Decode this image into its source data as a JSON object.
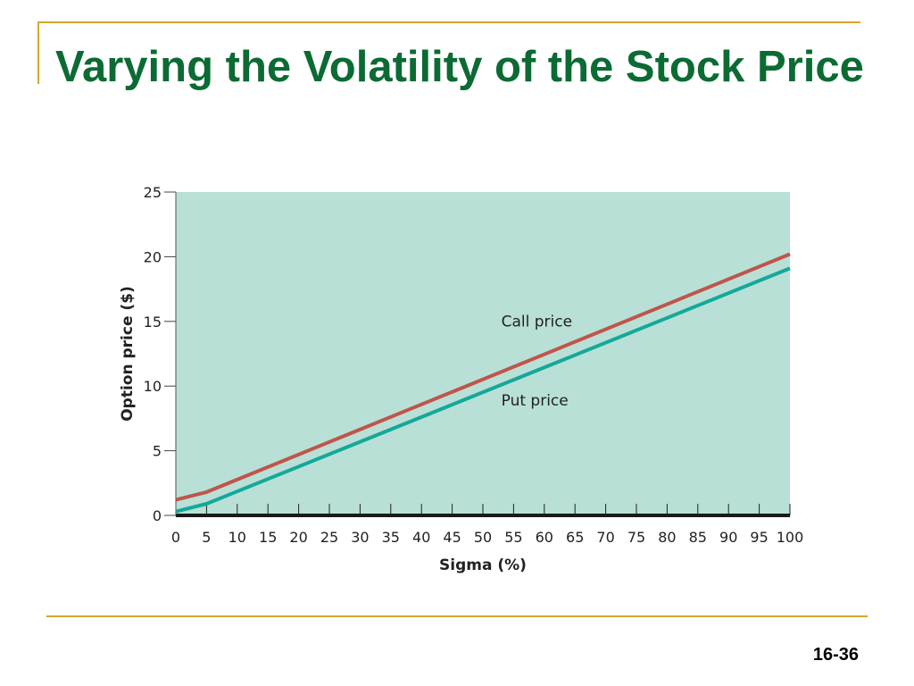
{
  "slide": {
    "title": "Varying the Volatility of the Stock Price",
    "number": "16-36"
  },
  "colors": {
    "title": "#0B6B33",
    "rule": "#D4A72C",
    "plot_background": "#B8E0D6",
    "call": "#C0554A",
    "put": "#14A89A",
    "axis": "#1A1A1A"
  },
  "chart_data": {
    "type": "line",
    "xlabel": "Sigma (%)",
    "ylabel": "Option price ($)",
    "xlim": [
      0,
      100
    ],
    "ylim": [
      0,
      25
    ],
    "xticks": [
      0,
      5,
      10,
      15,
      20,
      25,
      30,
      35,
      40,
      45,
      50,
      55,
      60,
      65,
      70,
      75,
      80,
      85,
      90,
      95,
      100
    ],
    "yticks": [
      0,
      5,
      10,
      15,
      20,
      25
    ],
    "grid": false,
    "series": [
      {
        "name": "Call price",
        "x": [
          0,
          5,
          100
        ],
        "values": [
          1.2,
          1.8,
          20.2
        ]
      },
      {
        "name": "Put price",
        "x": [
          0,
          5,
          100
        ],
        "values": [
          0.3,
          0.9,
          19.1
        ]
      }
    ]
  }
}
